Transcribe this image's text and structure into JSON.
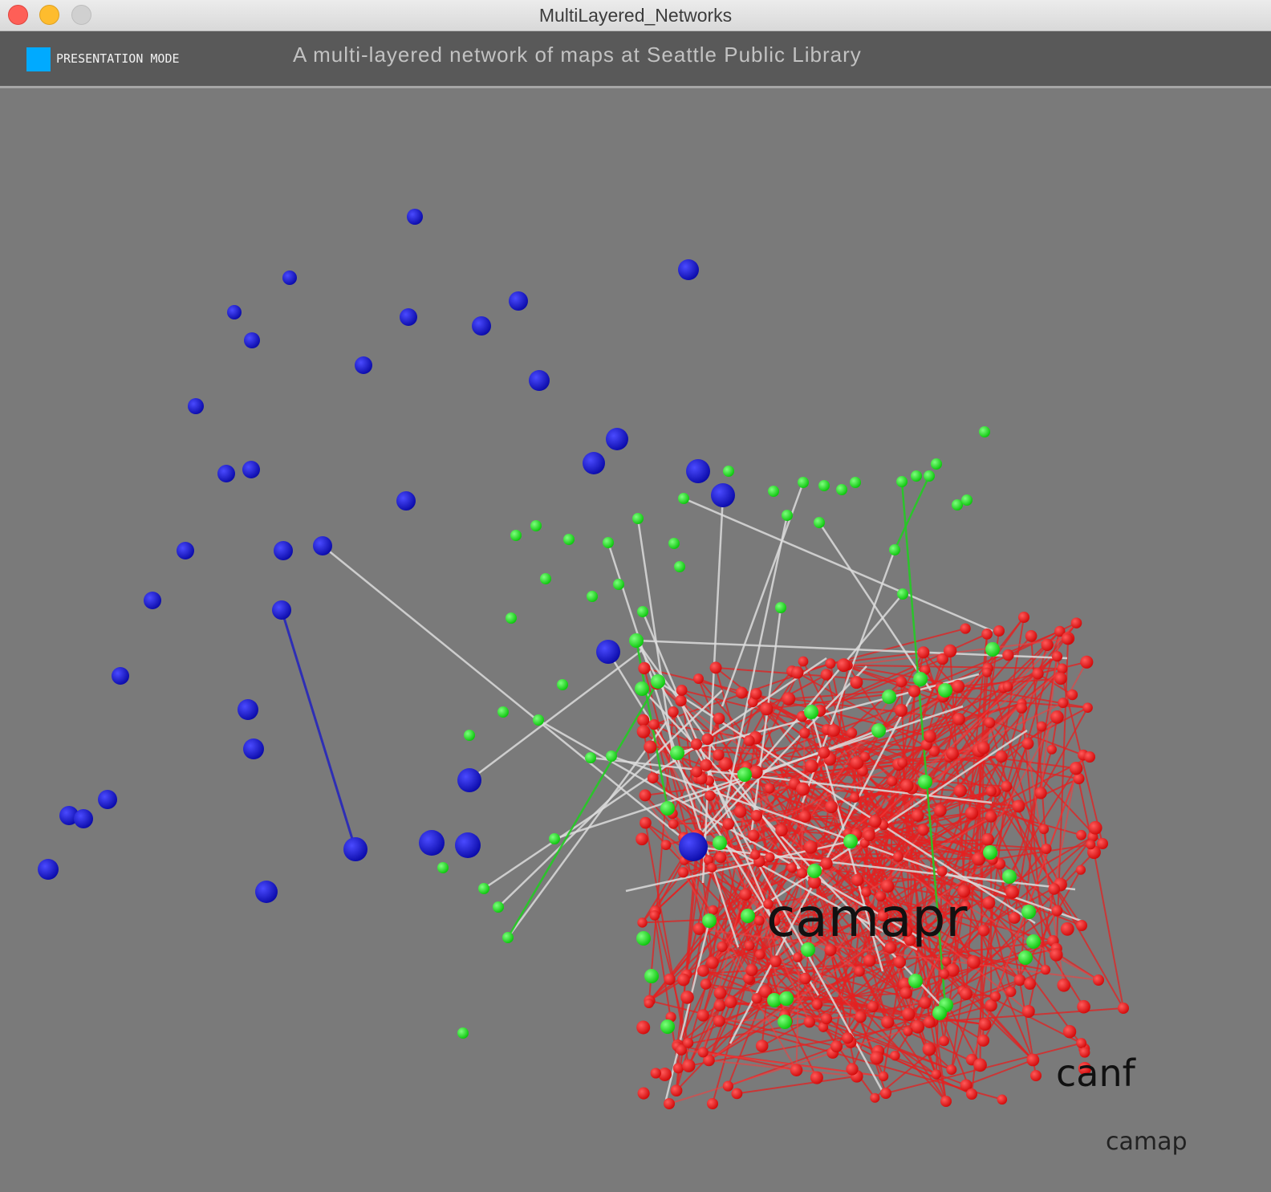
{
  "window": {
    "title": "MultiLayered_Networks"
  },
  "toolbar": {
    "presentation_mode_label": "PRESENTATION MODE",
    "subtitle": "A multi-layered network of maps at Seattle Public Library"
  },
  "labels": {
    "camapr": "camapr",
    "canf": "canf",
    "camap": "camap"
  },
  "colors": {
    "blue_layer": "#1010c8",
    "green_layer": "#10e010",
    "red_layer": "#ee1010",
    "toggle": "#00aaff"
  }
}
